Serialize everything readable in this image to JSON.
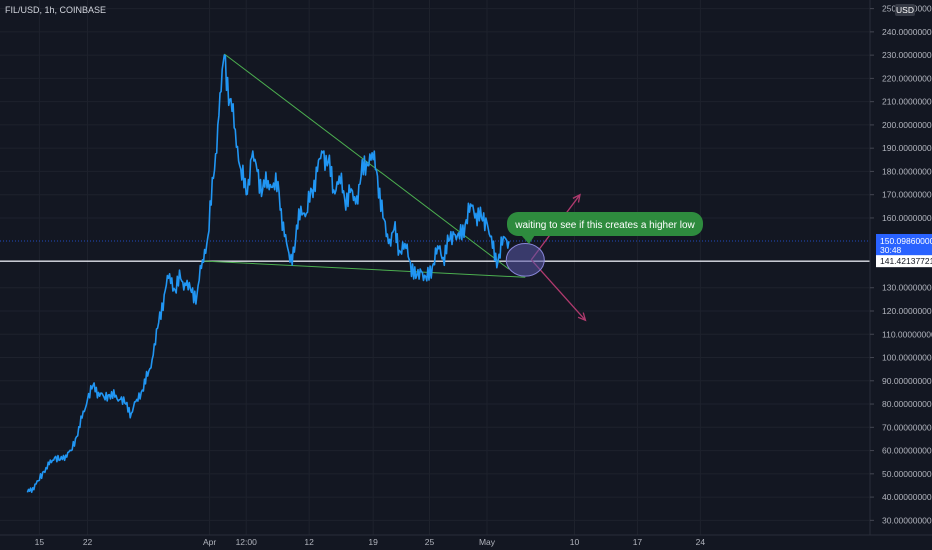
{
  "header": {
    "symbol_label": "FIL/USD, 1h, COINBASE",
    "currency_badge": "USD"
  },
  "chart_data": {
    "type": "line",
    "series": [
      {
        "values": [
          [
            0,
            42
          ],
          [
            1,
            44
          ],
          [
            2,
            47
          ],
          [
            3,
            51
          ],
          [
            4,
            54
          ],
          [
            5,
            57
          ],
          [
            6,
            56
          ],
          [
            7,
            58
          ],
          [
            8,
            60
          ],
          [
            9,
            66
          ],
          [
            10,
            74
          ],
          [
            11,
            82
          ],
          [
            12,
            88
          ],
          [
            13,
            85
          ],
          [
            14,
            83
          ],
          [
            15,
            84
          ],
          [
            16,
            83
          ],
          [
            17,
            82
          ],
          [
            18,
            80
          ],
          [
            19,
            76
          ],
          [
            20,
            82
          ],
          [
            21,
            86
          ],
          [
            22,
            92
          ],
          [
            23,
            101
          ],
          [
            24,
            115
          ],
          [
            25,
            127
          ],
          [
            26,
            136
          ],
          [
            27,
            129
          ],
          [
            28,
            134
          ],
          [
            29,
            131
          ],
          [
            30,
            128
          ],
          [
            31,
            127
          ],
          [
            32,
            142
          ],
          [
            33,
            152
          ],
          [
            34,
            177
          ],
          [
            35,
            204
          ],
          [
            36,
            230
          ],
          [
            37,
            211
          ],
          [
            38,
            198
          ],
          [
            39,
            181
          ],
          [
            40,
            170
          ],
          [
            41,
            186
          ],
          [
            42,
            180
          ],
          [
            43,
            172
          ],
          [
            44,
            176
          ],
          [
            45,
            175
          ],
          [
            46,
            171
          ],
          [
            47,
            152
          ],
          [
            48,
            141
          ],
          [
            49,
            150
          ],
          [
            50,
            165
          ],
          [
            51,
            162
          ],
          [
            52,
            172
          ],
          [
            53,
            180
          ],
          [
            54,
            188
          ],
          [
            55,
            184
          ],
          [
            56,
            172
          ],
          [
            57,
            178
          ],
          [
            58,
            168
          ],
          [
            59,
            171
          ],
          [
            60,
            166
          ],
          [
            61,
            178
          ],
          [
            62,
            184
          ],
          [
            63,
            188
          ],
          [
            64,
            178
          ],
          [
            65,
            160
          ],
          [
            66,
            149
          ],
          [
            67,
            155
          ],
          [
            68,
            146
          ],
          [
            69,
            149
          ],
          [
            70,
            141
          ],
          [
            71,
            134
          ],
          [
            72,
            137
          ],
          [
            73,
            133
          ],
          [
            74,
            139
          ],
          [
            75,
            148
          ],
          [
            76,
            143
          ],
          [
            77,
            150
          ],
          [
            78,
            153
          ],
          [
            79,
            151
          ],
          [
            80,
            157
          ],
          [
            81,
            166
          ],
          [
            82,
            162
          ],
          [
            83,
            160
          ],
          [
            84,
            158
          ],
          [
            85,
            147
          ],
          [
            86,
            141
          ],
          [
            87,
            152
          ],
          [
            88,
            150
          ]
        ]
      }
    ],
    "x_axis": {
      "labels": [
        {
          "label": "15",
          "at": 2.2
        },
        {
          "label": "22",
          "at": 11.0
        },
        {
          "label": "Apr",
          "at": 33.3
        },
        {
          "label": "12:00",
          "at": 40.0
        },
        {
          "label": "12",
          "at": 51.5
        },
        {
          "label": "19",
          "at": 63.2
        },
        {
          "label": "25",
          "at": 73.5
        },
        {
          "label": "May",
          "at": 84.0
        },
        {
          "label": "10",
          "at": 100.0
        },
        {
          "label": "17",
          "at": 111.5
        },
        {
          "label": "24",
          "at": 123.0
        }
      ],
      "xlim": [
        -5,
        154
      ]
    },
    "y_axis": {
      "ylim": [
        23.7,
        253.7
      ],
      "ticks": [
        {
          "v": 250,
          "label": "250.00000000"
        },
        {
          "v": 240,
          "label": "240.00000000"
        },
        {
          "v": 230,
          "label": "230.00000000"
        },
        {
          "v": 220,
          "label": "220.00000000"
        },
        {
          "v": 210,
          "label": "210.00000000"
        },
        {
          "v": 200,
          "label": "200.00000000"
        },
        {
          "v": 190,
          "label": "190.00000000"
        },
        {
          "v": 180,
          "label": "180.00000000"
        },
        {
          "v": 170,
          "label": "170.00000000"
        },
        {
          "v": 160,
          "label": "160.00000000"
        },
        {
          "v": 130,
          "label": "130.00000000"
        },
        {
          "v": 120,
          "label": "120.00000000"
        },
        {
          "v": 110,
          "label": "110.00000000"
        },
        {
          "v": 100,
          "label": "100.00000000"
        },
        {
          "v": 90,
          "label": "90.00000000"
        },
        {
          "v": 80,
          "label": "80.00000000"
        },
        {
          "v": 70,
          "label": "70.00000000"
        },
        {
          "v": 60,
          "label": "60.00000000"
        },
        {
          "v": 50,
          "label": "50.00000000"
        },
        {
          "v": 40,
          "label": "40.00000000"
        },
        {
          "v": 30,
          "label": "30.00000000"
        }
      ]
    },
    "grid": true,
    "last_price": {
      "value": 150.0986,
      "label": "150.09860000",
      "countdown": "30:48"
    },
    "horizontal_line": {
      "value": 141.42137721,
      "label": "141.42137721"
    },
    "trendlines": [
      {
        "name": "Upper trendline",
        "from": [
          36,
          230.5
        ],
        "to": [
          88,
          138
        ]
      },
      {
        "name": "Lower trendline",
        "from": [
          32,
          141.5
        ],
        "to": [
          91,
          134.5
        ]
      }
    ],
    "annotation": {
      "text": "waiting to see if this creates a higher low"
    },
    "projections": [
      {
        "to": [
          101,
          170
        ]
      },
      {
        "to": [
          102,
          116
        ]
      }
    ],
    "marker": {
      "center": [
        91,
        142
      ],
      "radius_value": 7
    },
    "colors": {
      "background": "#131722",
      "line": "#2196f3",
      "trend": "#4caf50",
      "note": "#2e8b3e",
      "arrow": "#b03a6e",
      "ellipse": "#5a58a8"
    }
  }
}
